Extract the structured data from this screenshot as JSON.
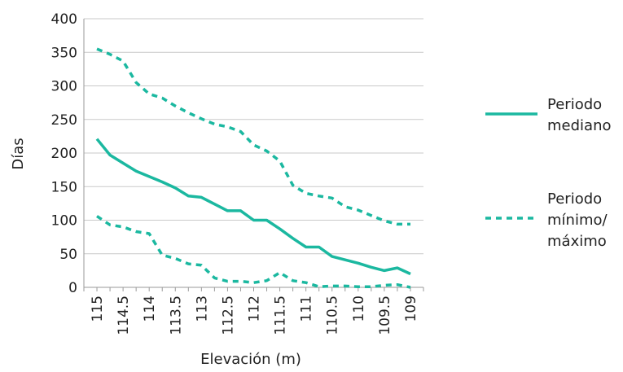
{
  "chart_data": {
    "type": "line",
    "xlabel": "Elevación (m)",
    "ylabel": "Días",
    "ylim": [
      0,
      400
    ],
    "yticks": [
      0,
      50,
      100,
      150,
      200,
      250,
      300,
      350,
      400
    ],
    "x": [
      115,
      114.75,
      114.5,
      114.25,
      114,
      113.75,
      113.5,
      113.25,
      113,
      112.75,
      112.5,
      112.25,
      112,
      111.75,
      111.5,
      111.25,
      111,
      110.75,
      110.5,
      110.25,
      110,
      109.75,
      109.5,
      109.25,
      109
    ],
    "xticks": [
      "115",
      "114.5",
      "114",
      "113.5",
      "113",
      "112.5",
      "112",
      "111.5",
      "111",
      "110.5",
      "110",
      "109.5",
      "109"
    ],
    "grid": "horizontal",
    "legend_position": "right",
    "color": "#1bb8a0",
    "series": [
      {
        "name": "Periodo mediano",
        "style": "solid",
        "values": [
          221,
          197,
          185,
          173,
          165,
          157,
          148,
          136,
          134,
          124,
          114,
          114,
          100,
          100,
          87,
          73,
          60,
          60,
          46,
          41,
          36,
          30,
          25,
          29,
          20
        ]
      },
      {
        "name": "Periodo mínimo/máximo (máximo)",
        "style": "dashed",
        "values": [
          355,
          347,
          337,
          305,
          288,
          282,
          270,
          260,
          251,
          243,
          239,
          232,
          212,
          203,
          188,
          152,
          140,
          136,
          133,
          120,
          115,
          107,
          99,
          94,
          94
        ]
      },
      {
        "name": "Periodo mínimo/máximo (mínimo)",
        "style": "dashed",
        "values": [
          106,
          93,
          90,
          83,
          80,
          48,
          43,
          35,
          33,
          14,
          9,
          9,
          7,
          10,
          22,
          10,
          7,
          1,
          2,
          2,
          1,
          1,
          3,
          4,
          0
        ]
      }
    ],
    "legend": [
      {
        "label": [
          "Periodo",
          "mediano"
        ],
        "style": "solid"
      },
      {
        "label": [
          "Periodo",
          "mínimo/",
          "máximo"
        ],
        "style": "dashed"
      }
    ]
  }
}
